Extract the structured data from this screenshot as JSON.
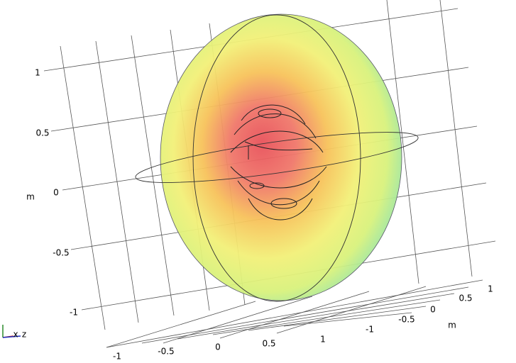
{
  "view": {
    "vertical_axis": {
      "ticks": [
        "1",
        "0.5",
        "0",
        "-0.5",
        "-1"
      ],
      "unit": "m"
    },
    "front_axis": {
      "ticks": [
        "-1",
        "-0.5",
        "0",
        "0.5",
        "1"
      ]
    },
    "depth_axis": {
      "ticks": [
        "1",
        "0.5",
        "0",
        "-0.5",
        "-1"
      ],
      "unit": "m"
    },
    "triad": {
      "labels": [
        "x",
        "z"
      ]
    }
  }
}
